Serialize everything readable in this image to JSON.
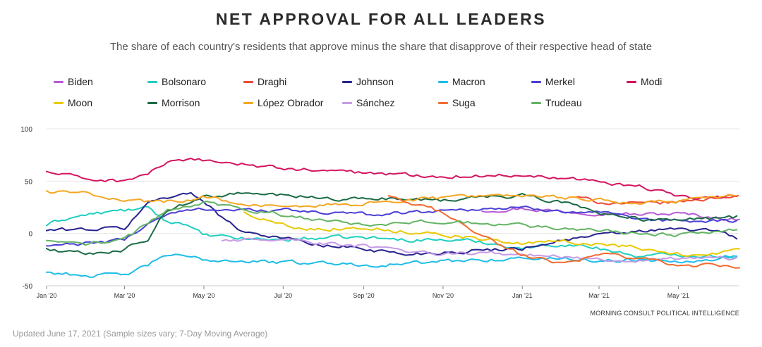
{
  "title": "NET APPROVAL FOR ALL LEADERS",
  "subtitle": "The share of each country's residents that approve minus the share that disapprove of their respective head of state",
  "source": "MORNING CONSULT POLITICAL INTELLIGENCE",
  "footer": "Updated June 17, 2021 (Sample sizes vary; 7-Day Moving Average)",
  "chart_data": {
    "type": "line",
    "x_type": "date",
    "x_range": [
      "2020-01-01",
      "2021-06-17"
    ],
    "ylim": [
      -50,
      100
    ],
    "yticks": [
      100,
      50,
      0,
      -50
    ],
    "xticks": [
      {
        "label": "Jan '20",
        "date": "2020-01-01"
      },
      {
        "label": "Mar '20",
        "date": "2020-03-01"
      },
      {
        "label": "May '20",
        "date": "2020-05-01"
      },
      {
        "label": "Jul '20",
        "date": "2020-07-01"
      },
      {
        "label": "Sep '20",
        "date": "2020-09-01"
      },
      {
        "label": "Nov '20",
        "date": "2020-11-01"
      },
      {
        "label": "Jan '21",
        "date": "2021-01-01"
      },
      {
        "label": "Mar '21",
        "date": "2021-03-01"
      },
      {
        "label": "May '21",
        "date": "2021-05-01"
      }
    ],
    "legend_position": "top",
    "grid": true,
    "series": [
      {
        "name": "Biden",
        "color": "#b85ad6",
        "points": [
          [
            "2020-12-01",
            22
          ],
          [
            "2021-01-01",
            24
          ],
          [
            "2021-02-01",
            21
          ],
          [
            "2021-03-01",
            20
          ],
          [
            "2021-04-01",
            18
          ],
          [
            "2021-05-01",
            19
          ],
          [
            "2021-06-17",
            13
          ]
        ]
      },
      {
        "name": "Bolsonaro",
        "color": "#1fcfc1",
        "points": [
          [
            "2020-01-01",
            8
          ],
          [
            "2020-01-15",
            14
          ],
          [
            "2020-02-01",
            18
          ],
          [
            "2020-03-01",
            22
          ],
          [
            "2020-03-20",
            24
          ],
          [
            "2020-04-01",
            12
          ],
          [
            "2020-04-15",
            10
          ],
          [
            "2020-05-01",
            -2
          ],
          [
            "2020-06-01",
            -5
          ],
          [
            "2020-07-01",
            -6
          ],
          [
            "2020-08-01",
            -4
          ],
          [
            "2020-09-01",
            -4
          ],
          [
            "2020-10-01",
            -6
          ],
          [
            "2020-11-01",
            -6
          ],
          [
            "2020-12-01",
            -8
          ],
          [
            "2021-01-01",
            -14
          ],
          [
            "2021-02-01",
            -10
          ],
          [
            "2021-03-01",
            -14
          ],
          [
            "2021-04-01",
            -22
          ],
          [
            "2021-05-01",
            -20
          ],
          [
            "2021-06-17",
            -22
          ]
        ]
      },
      {
        "name": "Draghi",
        "color": "#f04a3a",
        "points": [
          [
            "2021-02-10",
            35
          ],
          [
            "2021-03-01",
            30
          ],
          [
            "2021-04-01",
            28
          ],
          [
            "2021-05-01",
            30
          ],
          [
            "2021-06-17",
            37
          ]
        ]
      },
      {
        "name": "Johnson",
        "color": "#27238f",
        "points": [
          [
            "2020-01-01",
            3
          ],
          [
            "2020-02-01",
            4
          ],
          [
            "2020-03-01",
            5
          ],
          [
            "2020-03-20",
            30
          ],
          [
            "2020-04-01",
            35
          ],
          [
            "2020-04-20",
            38
          ],
          [
            "2020-05-01",
            32
          ],
          [
            "2020-05-20",
            10
          ],
          [
            "2020-06-01",
            2
          ],
          [
            "2020-07-01",
            -4
          ],
          [
            "2020-08-01",
            -12
          ],
          [
            "2020-09-01",
            -14
          ],
          [
            "2020-10-01",
            -20
          ],
          [
            "2020-11-01",
            -18
          ],
          [
            "2020-12-01",
            -16
          ],
          [
            "2021-01-01",
            -14
          ],
          [
            "2021-02-01",
            -6
          ],
          [
            "2021-03-01",
            -2
          ],
          [
            "2021-04-01",
            2
          ],
          [
            "2021-05-01",
            4
          ],
          [
            "2021-06-01",
            2
          ],
          [
            "2021-06-17",
            -5
          ]
        ]
      },
      {
        "name": "Macron",
        "color": "#1dbde8",
        "points": [
          [
            "2020-01-01",
            -37
          ],
          [
            "2020-02-01",
            -40
          ],
          [
            "2020-03-01",
            -40
          ],
          [
            "2020-03-20",
            -30
          ],
          [
            "2020-04-01",
            -20
          ],
          [
            "2020-05-01",
            -25
          ],
          [
            "2020-06-01",
            -26
          ],
          [
            "2020-07-01",
            -28
          ],
          [
            "2020-08-01",
            -28
          ],
          [
            "2020-09-01",
            -30
          ],
          [
            "2020-10-01",
            -29
          ],
          [
            "2020-11-01",
            -27
          ],
          [
            "2020-12-01",
            -25
          ],
          [
            "2021-01-01",
            -24
          ],
          [
            "2021-02-01",
            -24
          ],
          [
            "2021-03-01",
            -26
          ],
          [
            "2021-04-01",
            -25
          ],
          [
            "2021-05-01",
            -26
          ],
          [
            "2021-06-17",
            -22
          ]
        ]
      },
      {
        "name": "Merkel",
        "color": "#4a3fd6",
        "points": [
          [
            "2020-01-01",
            -12
          ],
          [
            "2020-02-01",
            -10
          ],
          [
            "2020-03-01",
            -6
          ],
          [
            "2020-03-20",
            10
          ],
          [
            "2020-04-01",
            18
          ],
          [
            "2020-05-01",
            24
          ],
          [
            "2020-06-01",
            22
          ],
          [
            "2020-07-01",
            22
          ],
          [
            "2020-08-01",
            20
          ],
          [
            "2020-09-01",
            18
          ],
          [
            "2020-10-01",
            20
          ],
          [
            "2020-11-01",
            22
          ],
          [
            "2020-12-01",
            24
          ],
          [
            "2021-01-01",
            24
          ],
          [
            "2021-02-01",
            22
          ],
          [
            "2021-03-01",
            20
          ],
          [
            "2021-04-01",
            12
          ],
          [
            "2021-05-01",
            12
          ],
          [
            "2021-06-17",
            12
          ]
        ]
      },
      {
        "name": "Modi",
        "color": "#d5145f",
        "points": [
          [
            "2020-01-01",
            59
          ],
          [
            "2020-02-01",
            52
          ],
          [
            "2020-03-01",
            50
          ],
          [
            "2020-03-20",
            58
          ],
          [
            "2020-04-01",
            67
          ],
          [
            "2020-05-01",
            70
          ],
          [
            "2020-06-01",
            66
          ],
          [
            "2020-07-01",
            62
          ],
          [
            "2020-08-01",
            60
          ],
          [
            "2020-09-01",
            58
          ],
          [
            "2020-10-01",
            56
          ],
          [
            "2020-11-01",
            55
          ],
          [
            "2020-12-01",
            55
          ],
          [
            "2021-01-01",
            56
          ],
          [
            "2021-02-01",
            54
          ],
          [
            "2021-03-01",
            50
          ],
          [
            "2021-04-01",
            45
          ],
          [
            "2021-05-01",
            35
          ],
          [
            "2021-06-01",
            34
          ],
          [
            "2021-06-17",
            36
          ]
        ]
      },
      {
        "name": "Moon",
        "color": "#e9c900",
        "points": [
          [
            "2020-06-01",
            20
          ],
          [
            "2020-07-01",
            8
          ],
          [
            "2020-08-01",
            4
          ],
          [
            "2020-09-01",
            6
          ],
          [
            "2020-10-01",
            2
          ],
          [
            "2020-11-01",
            0
          ],
          [
            "2020-12-01",
            -6
          ],
          [
            "2021-01-01",
            -10
          ],
          [
            "2021-02-01",
            -8
          ],
          [
            "2021-03-01",
            -10
          ],
          [
            "2021-04-01",
            -14
          ],
          [
            "2021-05-01",
            -20
          ],
          [
            "2021-06-17",
            -17
          ]
        ]
      },
      {
        "name": "Morrison",
        "color": "#1a6b45",
        "points": [
          [
            "2020-01-01",
            -15
          ],
          [
            "2020-02-01",
            -20
          ],
          [
            "2020-03-01",
            -15
          ],
          [
            "2020-03-20",
            -5
          ],
          [
            "2020-04-01",
            20
          ],
          [
            "2020-05-01",
            35
          ],
          [
            "2020-06-01",
            38
          ],
          [
            "2020-07-01",
            36
          ],
          [
            "2020-08-01",
            34
          ],
          [
            "2020-09-01",
            32
          ],
          [
            "2020-10-01",
            34
          ],
          [
            "2020-11-01",
            32
          ],
          [
            "2020-12-01",
            34
          ],
          [
            "2021-01-01",
            36
          ],
          [
            "2021-02-01",
            30
          ],
          [
            "2021-03-01",
            20
          ],
          [
            "2021-04-01",
            14
          ],
          [
            "2021-05-01",
            12
          ],
          [
            "2021-06-17",
            16
          ]
        ]
      },
      {
        "name": "López Obrador",
        "color": "#f5a623",
        "points": [
          [
            "2020-01-01",
            40
          ],
          [
            "2020-02-01",
            38
          ],
          [
            "2020-03-01",
            32
          ],
          [
            "2020-04-01",
            30
          ],
          [
            "2020-05-01",
            35
          ],
          [
            "2020-06-01",
            28
          ],
          [
            "2020-07-01",
            24
          ],
          [
            "2020-08-01",
            28
          ],
          [
            "2020-09-01",
            28
          ],
          [
            "2020-10-01",
            32
          ],
          [
            "2020-11-01",
            34
          ],
          [
            "2020-12-01",
            36
          ],
          [
            "2021-01-01",
            35
          ],
          [
            "2021-02-01",
            34
          ],
          [
            "2021-03-01",
            32
          ],
          [
            "2021-04-01",
            30
          ],
          [
            "2021-05-01",
            30
          ],
          [
            "2021-06-17",
            37
          ]
        ]
      },
      {
        "name": "Sánchez",
        "color": "#c59be6",
        "points": [
          [
            "2020-05-15",
            -8
          ],
          [
            "2020-06-01",
            -6
          ],
          [
            "2020-07-01",
            -4
          ],
          [
            "2020-08-01",
            -10
          ],
          [
            "2020-09-01",
            -12
          ],
          [
            "2020-10-01",
            -18
          ],
          [
            "2020-11-01",
            -20
          ],
          [
            "2020-12-01",
            -18
          ],
          [
            "2021-01-01",
            -20
          ],
          [
            "2021-02-01",
            -22
          ],
          [
            "2021-03-01",
            -26
          ],
          [
            "2021-04-01",
            -26
          ],
          [
            "2021-05-01",
            -24
          ],
          [
            "2021-06-17",
            -24
          ]
        ]
      },
      {
        "name": "Suga",
        "color": "#f26b2f",
        "points": [
          [
            "2020-09-20",
            35
          ],
          [
            "2020-10-01",
            30
          ],
          [
            "2020-11-01",
            20
          ],
          [
            "2020-12-01",
            -2
          ],
          [
            "2021-01-01",
            -20
          ],
          [
            "2021-02-01",
            -30
          ],
          [
            "2021-03-01",
            -20
          ],
          [
            "2021-04-01",
            -24
          ],
          [
            "2021-05-01",
            -30
          ],
          [
            "2021-06-17",
            -32
          ]
        ]
      },
      {
        "name": "Trudeau",
        "color": "#62b463",
        "points": [
          [
            "2020-01-01",
            -8
          ],
          [
            "2020-02-01",
            -10
          ],
          [
            "2020-03-01",
            -6
          ],
          [
            "2020-03-20",
            10
          ],
          [
            "2020-04-01",
            22
          ],
          [
            "2020-05-01",
            30
          ],
          [
            "2020-06-01",
            24
          ],
          [
            "2020-07-01",
            18
          ],
          [
            "2020-08-01",
            12
          ],
          [
            "2020-09-01",
            8
          ],
          [
            "2020-10-01",
            10
          ],
          [
            "2020-11-01",
            12
          ],
          [
            "2020-12-01",
            10
          ],
          [
            "2021-01-01",
            8
          ],
          [
            "2021-02-01",
            4
          ],
          [
            "2021-03-01",
            2
          ],
          [
            "2021-04-01",
            0
          ],
          [
            "2021-05-01",
            -2
          ],
          [
            "2021-06-17",
            5
          ]
        ]
      }
    ]
  }
}
